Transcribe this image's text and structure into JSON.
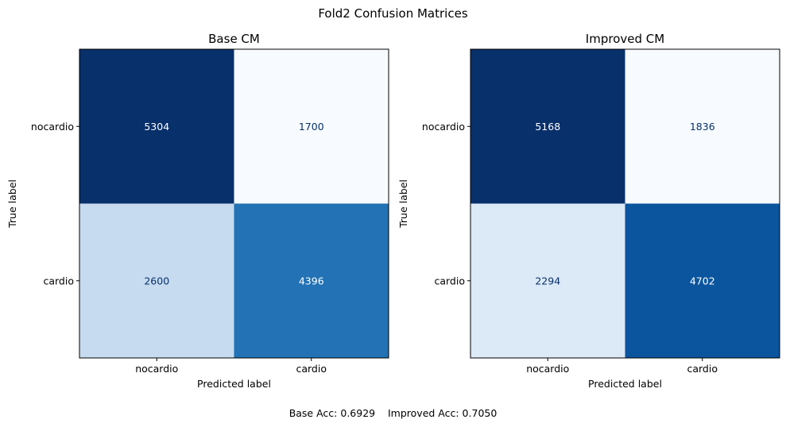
{
  "suptitle": "Fold2 Confusion Matrices",
  "footer": "Base Acc: 0.6929    Improved Acc: 0.7050",
  "chart_data": [
    {
      "type": "heatmap",
      "title": "Base CM",
      "xlabel": "Predicted label",
      "ylabel": "True label",
      "x_categories": [
        "nocardio",
        "cardio"
      ],
      "y_categories": [
        "nocardio",
        "cardio"
      ],
      "values": [
        [
          5304,
          1700
        ],
        [
          2600,
          4396
        ]
      ],
      "colormap": "Blues",
      "colorbar": false
    },
    {
      "type": "heatmap",
      "title": "Improved CM",
      "xlabel": "Predicted label",
      "ylabel": "True label",
      "x_categories": [
        "nocardio",
        "cardio"
      ],
      "y_categories": [
        "nocardio",
        "cardio"
      ],
      "values": [
        [
          5168,
          1836
        ],
        [
          2294,
          4702
        ]
      ],
      "colormap": "Blues",
      "colorbar": false
    }
  ]
}
